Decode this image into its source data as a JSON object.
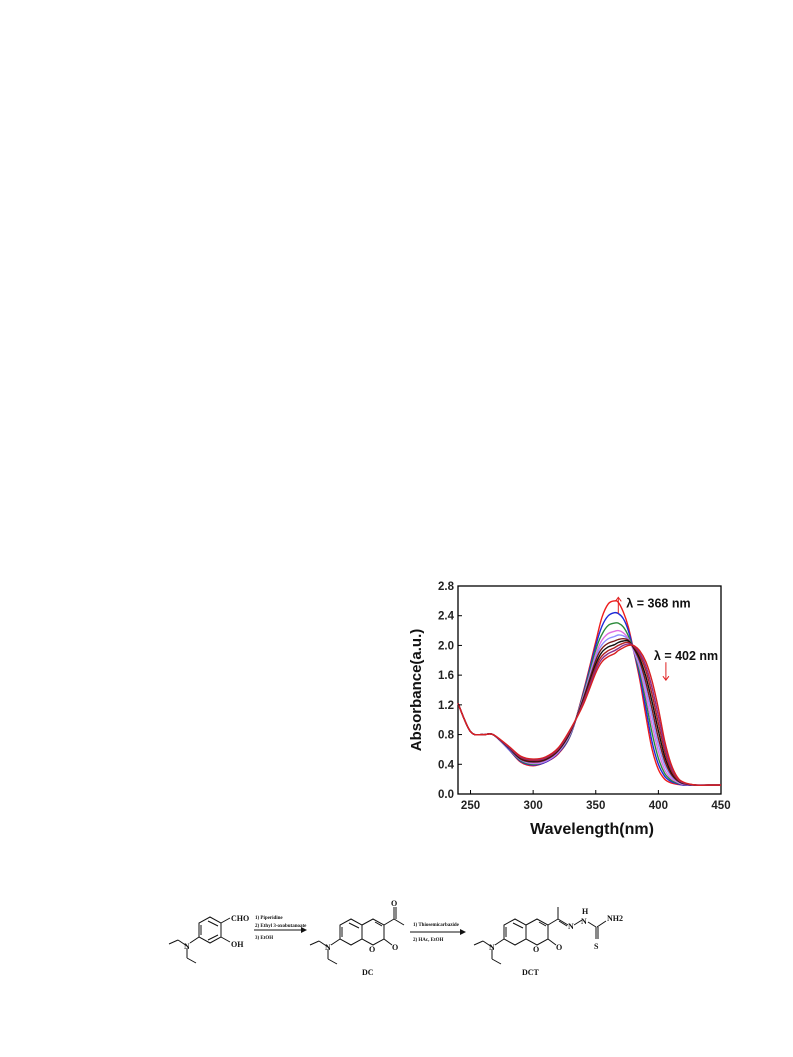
{
  "chart_data": {
    "type": "line",
    "xlabel": "Wavelength(nm)",
    "ylabel": "Absorbance(a.u.)",
    "xlim": [
      240,
      450
    ],
    "ylim": [
      0.0,
      2.8
    ],
    "xticks": [
      250,
      300,
      350,
      400,
      450
    ],
    "xtick_labels": [
      "250",
      "300",
      "350",
      "400",
      "450"
    ],
    "yticks": [
      0.0,
      0.4,
      0.8,
      1.2,
      1.6,
      2.0,
      2.4,
      2.8
    ],
    "ytick_labels": [
      "0.0",
      "0.4",
      "0.8",
      "1.2",
      "1.6",
      "2.0",
      "2.4",
      "2.8"
    ],
    "grid": false,
    "legend": "none",
    "annotations": [
      {
        "text": "λ = 368 nm",
        "x": 368,
        "y": 2.62,
        "arrow": "up",
        "arrow_color": "#e02020"
      },
      {
        "text": "λ = 402 nm",
        "x": 406,
        "y": 1.72,
        "arrow": "down",
        "arrow_color": "#e02020"
      }
    ],
    "x": [
      240,
      250,
      260,
      268,
      280,
      290,
      300,
      310,
      320,
      330,
      340,
      350,
      355,
      360,
      365,
      368,
      372,
      376,
      380,
      385,
      390,
      395,
      400,
      405,
      410,
      415,
      420,
      430,
      440,
      450
    ],
    "series": [
      {
        "color": "#ee1c1c",
        "values": [
          1.22,
          0.84,
          0.8,
          0.8,
          0.61,
          0.43,
          0.38,
          0.43,
          0.54,
          0.8,
          1.37,
          2.05,
          2.38,
          2.56,
          2.6,
          2.58,
          2.45,
          2.25,
          1.95,
          1.55,
          1.05,
          0.6,
          0.33,
          0.2,
          0.15,
          0.13,
          0.12,
          0.12,
          0.12,
          0.12
        ]
      },
      {
        "color": "#1d2bd8",
        "values": [
          1.22,
          0.84,
          0.8,
          0.8,
          0.61,
          0.44,
          0.39,
          0.43,
          0.55,
          0.8,
          1.35,
          2.0,
          2.26,
          2.4,
          2.44,
          2.43,
          2.36,
          2.2,
          1.95,
          1.6,
          1.15,
          0.7,
          0.4,
          0.24,
          0.17,
          0.14,
          0.12,
          0.12,
          0.12,
          0.12
        ]
      },
      {
        "color": "#2a8a3a",
        "values": [
          1.22,
          0.84,
          0.8,
          0.8,
          0.62,
          0.45,
          0.4,
          0.44,
          0.56,
          0.81,
          1.33,
          1.94,
          2.15,
          2.27,
          2.3,
          2.3,
          2.25,
          2.13,
          1.95,
          1.65,
          1.25,
          0.82,
          0.48,
          0.28,
          0.19,
          0.15,
          0.13,
          0.12,
          0.12,
          0.12
        ]
      },
      {
        "color": "#e070e0",
        "values": [
          1.22,
          0.84,
          0.8,
          0.8,
          0.62,
          0.46,
          0.41,
          0.44,
          0.56,
          0.82,
          1.31,
          1.88,
          2.07,
          2.16,
          2.19,
          2.2,
          2.17,
          2.09,
          1.94,
          1.7,
          1.33,
          0.93,
          0.57,
          0.33,
          0.21,
          0.16,
          0.13,
          0.12,
          0.12,
          0.12
        ]
      },
      {
        "color": "#9090ff",
        "values": [
          1.22,
          0.84,
          0.8,
          0.8,
          0.62,
          0.46,
          0.42,
          0.45,
          0.57,
          0.83,
          1.3,
          1.84,
          2.01,
          2.09,
          2.12,
          2.14,
          2.13,
          2.08,
          1.95,
          1.74,
          1.42,
          1.04,
          0.66,
          0.39,
          0.24,
          0.17,
          0.14,
          0.12,
          0.12,
          0.12
        ]
      },
      {
        "color": "#7a1a1a",
        "values": [
          1.22,
          0.84,
          0.8,
          0.8,
          0.63,
          0.47,
          0.43,
          0.46,
          0.58,
          0.84,
          1.28,
          1.8,
          1.96,
          2.03,
          2.06,
          2.08,
          2.09,
          2.07,
          1.97,
          1.79,
          1.5,
          1.14,
          0.75,
          0.45,
          0.27,
          0.18,
          0.14,
          0.12,
          0.12,
          0.12
        ]
      },
      {
        "color": "#111111",
        "values": [
          1.22,
          0.84,
          0.8,
          0.8,
          0.63,
          0.48,
          0.44,
          0.47,
          0.59,
          0.85,
          1.26,
          1.75,
          1.91,
          1.98,
          2.01,
          2.04,
          2.06,
          2.06,
          1.98,
          1.83,
          1.58,
          1.24,
          0.85,
          0.51,
          0.3,
          0.19,
          0.14,
          0.12,
          0.12,
          0.12
        ]
      },
      {
        "color": "#b02020",
        "values": [
          1.22,
          0.84,
          0.8,
          0.8,
          0.64,
          0.49,
          0.45,
          0.48,
          0.6,
          0.86,
          1.24,
          1.71,
          1.86,
          1.93,
          1.97,
          2.0,
          2.03,
          2.04,
          1.99,
          1.87,
          1.66,
          1.34,
          0.95,
          0.58,
          0.33,
          0.2,
          0.15,
          0.12,
          0.12,
          0.12
        ]
      },
      {
        "color": "#8a2a8a",
        "values": [
          1.22,
          0.84,
          0.8,
          0.8,
          0.64,
          0.5,
          0.46,
          0.49,
          0.61,
          0.87,
          1.22,
          1.67,
          1.82,
          1.89,
          1.93,
          1.96,
          2.0,
          2.02,
          2.0,
          1.9,
          1.72,
          1.43,
          1.05,
          0.65,
          0.37,
          0.22,
          0.15,
          0.12,
          0.12,
          0.12
        ]
      },
      {
        "color": "#d82020",
        "values": [
          1.22,
          0.84,
          0.8,
          0.8,
          0.65,
          0.51,
          0.47,
          0.5,
          0.62,
          0.88,
          1.2,
          1.63,
          1.78,
          1.85,
          1.89,
          1.93,
          1.97,
          2.0,
          2.0,
          1.93,
          1.78,
          1.52,
          1.15,
          0.72,
          0.41,
          0.23,
          0.16,
          0.12,
          0.12,
          0.12
        ]
      }
    ]
  },
  "scheme": {
    "substituents": {
      "cho": "CHO",
      "oh": "OH",
      "n": "N",
      "o": "O",
      "nh2": "NH2",
      "s": "S",
      "h": "H"
    },
    "step1": [
      "1) Piperidine",
      "2) Ethyl 3-oxobutanoate",
      "3) EtOH"
    ],
    "step2": [
      "1) Thiosemicarbazide",
      "2) HAc, EtOH"
    ],
    "labels": {
      "intermediate": "DC",
      "product": "DCT"
    }
  }
}
